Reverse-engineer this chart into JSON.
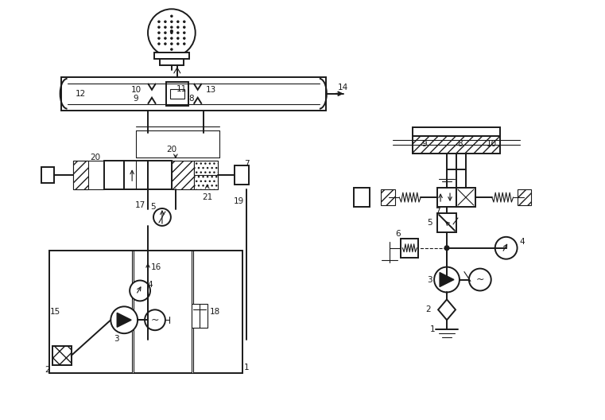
{
  "fig_width": 7.61,
  "fig_height": 5.28,
  "bg_color": "#ffffff",
  "line_color": "#1a1a1a",
  "lw": 0.8,
  "lw2": 1.4
}
